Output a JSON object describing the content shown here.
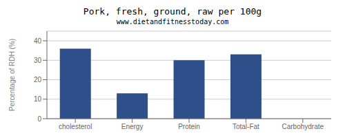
{
  "chart_data": {
    "type": "bar",
    "title": "Pork, fresh, ground, raw per 100g",
    "subtitle": "www.dietandfitnesstoday.com",
    "categories": [
      "cholesterol",
      "Energy",
      "Protein",
      "Total-Fat",
      "Carbohydrate"
    ],
    "values": [
      36,
      13,
      30,
      33,
      0
    ],
    "color": "#2e4f8a",
    "ylabel": "Percentage of RDH (%)",
    "ylim": [
      0,
      45
    ],
    "yticks": [
      0,
      10,
      20,
      30,
      40
    ],
    "grid": true
  }
}
